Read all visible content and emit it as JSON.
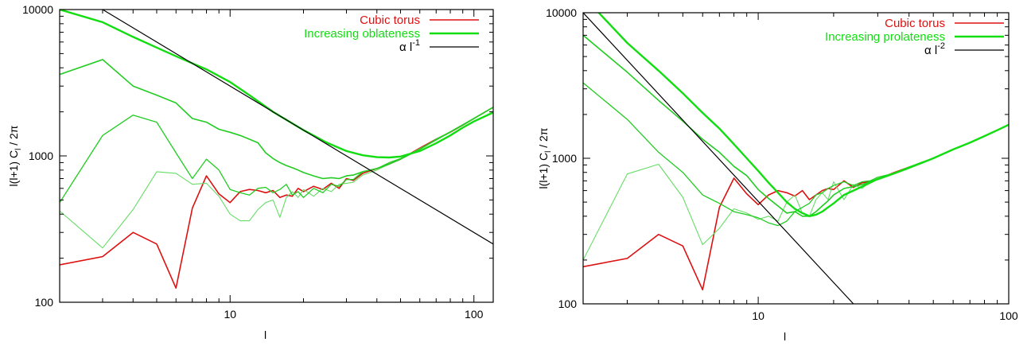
{
  "chart_data": [
    {
      "type": "line",
      "xscale": "log",
      "yscale": "log",
      "xlim": [
        2,
        120
      ],
      "ylim": [
        100,
        10000
      ],
      "xlabel": "l",
      "ylabel_parts": [
        "l(l+1) C",
        "l",
        " / 2π"
      ],
      "grid": false,
      "legend_placement": "top-right",
      "x_tick_labels": [
        {
          "v": 10,
          "t": "10"
        },
        {
          "v": 100,
          "t": "100"
        }
      ],
      "y_tick_labels": [
        {
          "v": 100,
          "t": "100"
        },
        {
          "v": 1000,
          "t": "1000"
        },
        {
          "v": 10000,
          "t": "10000"
        }
      ],
      "legend": [
        {
          "text": "Cubic torus",
          "sup": "",
          "color": "#dd1111",
          "width": 1.6
        },
        {
          "text": "Increasing oblateness",
          "sup": "",
          "color": "#11dd11",
          "width": 2.4
        },
        {
          "text": "α l",
          "sup": "-1",
          "color": "#000000",
          "width": 1.2
        }
      ],
      "series": [
        {
          "name": "Cubic torus",
          "color": "#dd1111",
          "width": 1.6,
          "x": [
            2,
            3,
            4,
            5,
            6,
            7,
            8,
            9,
            10,
            11,
            12,
            13,
            14,
            15,
            16,
            17,
            18,
            19,
            20,
            22,
            24,
            26,
            28,
            30,
            32,
            35,
            40,
            45,
            50,
            60,
            70,
            80,
            90,
            100,
            120
          ],
          "y": [
            180,
            205,
            300,
            250,
            125,
            440,
            730,
            550,
            480,
            570,
            590,
            580,
            560,
            580,
            520,
            540,
            530,
            600,
            570,
            620,
            590,
            650,
            600,
            700,
            680,
            760,
            820,
            880,
            950,
            1130,
            1300,
            1450,
            1620,
            1800,
            2150
          ]
        },
        {
          "x": [
            2,
            3,
            4,
            5,
            6,
            7,
            8,
            9,
            10,
            11,
            12,
            13,
            14,
            15,
            16,
            17,
            18,
            19,
            20,
            22,
            24,
            26,
            28,
            30,
            32,
            35,
            40,
            45,
            50,
            60,
            70,
            80,
            90,
            100,
            120
          ],
          "y": [
            420,
            235,
            430,
            780,
            760,
            640,
            650,
            530,
            400,
            360,
            360,
            430,
            480,
            500,
            380,
            520,
            570,
            520,
            590,
            530,
            600,
            570,
            640,
            650,
            660,
            740,
            800,
            880,
            950,
            1120,
            1280,
            1450,
            1620,
            1800,
            2150
          ],
          "color": "#66dd66",
          "width": 1.1
        },
        {
          "x": [
            2,
            3,
            4,
            5,
            6,
            7,
            8,
            9,
            10,
            11,
            12,
            13,
            14,
            15,
            16,
            17,
            18,
            19,
            20,
            22,
            24,
            26,
            28,
            30,
            32,
            35,
            40,
            45,
            50,
            60,
            70,
            80,
            90,
            100,
            120
          ],
          "y": [
            480,
            1380,
            1900,
            1700,
            1050,
            700,
            950,
            800,
            590,
            560,
            540,
            600,
            610,
            560,
            590,
            640,
            540,
            570,
            520,
            600,
            560,
            640,
            620,
            690,
            690,
            780,
            820,
            900,
            960,
            1110,
            1300,
            1460,
            1630,
            1800,
            2150
          ],
          "color": "#22cc22",
          "width": 1.3
        },
        {
          "x": [
            2,
            3,
            4,
            5,
            6,
            7,
            8,
            9,
            10,
            11,
            12,
            13,
            14,
            15,
            16,
            17,
            18,
            19,
            20,
            22,
            24,
            26,
            28,
            30,
            32,
            35,
            40,
            45,
            50,
            60,
            70,
            80,
            90,
            100,
            120
          ],
          "y": [
            3600,
            4550,
            3000,
            2600,
            2300,
            1800,
            1700,
            1520,
            1450,
            1380,
            1300,
            1230,
            1050,
            960,
            900,
            860,
            830,
            800,
            770,
            730,
            700,
            710,
            700,
            730,
            740,
            780,
            820,
            880,
            950,
            1110,
            1290,
            1460,
            1630,
            1800,
            2150
          ],
          "color": "#22cc22",
          "width": 1.6
        },
        {
          "x": [
            2,
            3,
            4,
            5,
            6,
            8,
            10,
            12,
            15,
            20,
            25,
            30,
            35,
            40,
            45,
            50,
            60,
            70,
            80,
            90,
            100,
            120
          ],
          "y": [
            10000,
            8200,
            6500,
            5500,
            4800,
            3900,
            3200,
            2600,
            2000,
            1500,
            1230,
            1080,
            1010,
            980,
            975,
            990,
            1080,
            1220,
            1380,
            1560,
            1720,
            1980
          ],
          "color": "#11dd11",
          "width": 2.4
        },
        {
          "x": [
            3,
            120
          ],
          "y": [
            10000,
            250
          ],
          "color": "#000000",
          "width": 1.2
        }
      ]
    },
    {
      "type": "line",
      "xscale": "log",
      "yscale": "log",
      "xlim": [
        2,
        100
      ],
      "ylim": [
        100,
        10000
      ],
      "xlabel": "l",
      "ylabel_parts": [
        "l(l+1) C",
        "l",
        " / 2π"
      ],
      "grid": false,
      "legend_placement": "top-right",
      "x_tick_labels": [
        {
          "v": 10,
          "t": "10"
        },
        {
          "v": 100,
          "t": "100"
        }
      ],
      "y_tick_labels": [
        {
          "v": 100,
          "t": "100"
        },
        {
          "v": 1000,
          "t": "1000"
        },
        {
          "v": 10000,
          "t": "10000"
        }
      ],
      "legend": [
        {
          "text": "Cubic torus",
          "sup": "",
          "color": "#dd1111",
          "width": 1.6
        },
        {
          "text": "Increasing prolateness",
          "sup": "",
          "color": "#11dd11",
          "width": 2.4
        },
        {
          "text": "α l",
          "sup": "-2",
          "color": "#000000",
          "width": 1.2
        }
      ],
      "series": [
        {
          "name": "Cubic torus",
          "color": "#dd1111",
          "width": 1.6,
          "x": [
            2,
            3,
            4,
            5,
            6,
            7,
            8,
            9,
            10,
            11,
            12,
            13,
            14,
            15,
            16,
            17,
            18,
            19,
            20,
            22,
            24,
            26,
            28,
            30,
            35,
            40,
            45,
            50,
            60,
            70,
            80,
            90,
            100
          ],
          "y": [
            180,
            205,
            300,
            250,
            125,
            460,
            730,
            570,
            480,
            560,
            600,
            580,
            550,
            600,
            520,
            560,
            600,
            620,
            610,
            700,
            630,
            680,
            690,
            720,
            800,
            870,
            930,
            1000,
            1150,
            1280,
            1420,
            1560,
            1700
          ]
        },
        {
          "x": [
            2,
            3,
            4,
            5,
            6,
            7,
            8,
            9,
            10,
            11,
            12,
            13,
            14,
            15,
            16,
            17,
            18,
            19,
            20,
            22,
            24,
            26,
            28,
            30,
            35,
            40,
            45,
            50,
            60,
            70,
            80,
            90,
            100
          ],
          "y": [
            200,
            780,
            910,
            540,
            255,
            330,
            450,
            420,
            380,
            400,
            370,
            500,
            560,
            420,
            400,
            520,
            580,
            520,
            690,
            520,
            660,
            620,
            700,
            710,
            780,
            850,
            930,
            1000,
            1150,
            1280,
            1420,
            1560,
            1700
          ],
          "color": "#66dd66",
          "width": 1.1
        },
        {
          "x": [
            2,
            3,
            4,
            5,
            6,
            7,
            8,
            9,
            10,
            11,
            12,
            13,
            14,
            15,
            16,
            17,
            18,
            19,
            20,
            22,
            24,
            26,
            28,
            30,
            35,
            40,
            45,
            50,
            60,
            70,
            80,
            90,
            100
          ],
          "y": [
            3300,
            1850,
            1100,
            800,
            560,
            490,
            430,
            410,
            390,
            360,
            345,
            370,
            430,
            460,
            490,
            560,
            580,
            620,
            650,
            690,
            650,
            690,
            700,
            740,
            790,
            870,
            940,
            1000,
            1150,
            1280,
            1420,
            1560,
            1700
          ],
          "color": "#22cc22",
          "width": 1.3
        },
        {
          "x": [
            2,
            3,
            4,
            5,
            6,
            7,
            8,
            9,
            10,
            11,
            12,
            13,
            14,
            15,
            16,
            17,
            18,
            19,
            20,
            22,
            24,
            26,
            28,
            30,
            35,
            40,
            45,
            50,
            60,
            70,
            80,
            90,
            100
          ],
          "y": [
            7000,
            3900,
            2500,
            1800,
            1350,
            1100,
            880,
            760,
            610,
            530,
            470,
            420,
            430,
            400,
            400,
            430,
            470,
            510,
            560,
            620,
            640,
            660,
            690,
            720,
            790,
            870,
            930,
            1000,
            1150,
            1280,
            1420,
            1560,
            1700
          ],
          "color": "#22cc22",
          "width": 1.6
        },
        {
          "x": [
            2,
            3,
            4,
            5,
            6,
            7,
            8,
            9,
            10,
            11,
            12,
            13,
            14,
            15,
            16,
            17,
            18,
            19,
            20,
            22,
            24,
            26,
            28,
            30,
            35,
            40,
            45,
            50,
            60,
            70,
            80,
            90,
            100
          ],
          "y": [
            13000,
            6200,
            4000,
            2800,
            2050,
            1600,
            1250,
            1000,
            820,
            680,
            580,
            500,
            450,
            420,
            400,
            410,
            430,
            460,
            490,
            560,
            600,
            640,
            680,
            720,
            790,
            860,
            930,
            1000,
            1150,
            1280,
            1420,
            1560,
            1700
          ],
          "color": "#11dd11",
          "width": 2.4
        },
        {
          "x": [
            2,
            24
          ],
          "y": [
            10000,
            100
          ],
          "color": "#000000",
          "width": 1.2
        }
      ]
    }
  ]
}
